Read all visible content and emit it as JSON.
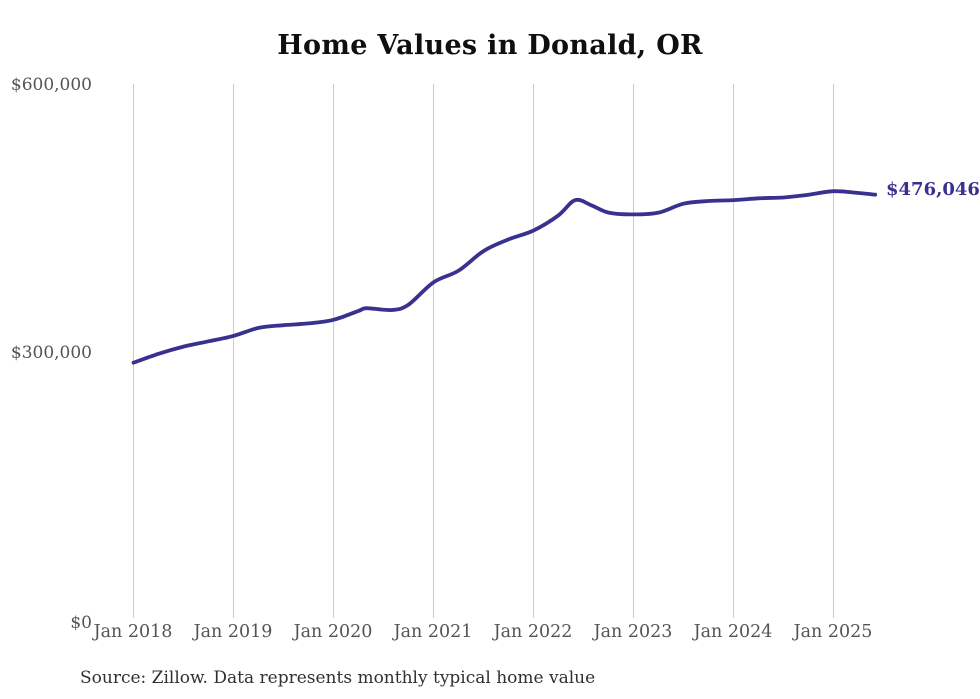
{
  "title": "Home Values in Donald, OR",
  "source_note": "Source: Zillow. Data represents monthly typical home value",
  "colors": {
    "background": "#ffffff",
    "line": "#39318f",
    "grid": "#cccccc",
    "axis_text": "#545454",
    "title_text": "#0f0f0f",
    "source_text": "#303030",
    "end_label_text": "#39318f"
  },
  "chart_data": {
    "type": "line",
    "title": "Home Values in Donald, OR",
    "series_name": "Monthly typical home value",
    "x": [
      "2018-01",
      "2018-04",
      "2018-07",
      "2018-10",
      "2019-01",
      "2019-04",
      "2019-07",
      "2019-10",
      "2020-01",
      "2020-04",
      "2020-05",
      "2020-08",
      "2020-10",
      "2021-01",
      "2021-04",
      "2021-07",
      "2021-10",
      "2022-01",
      "2022-04",
      "2022-06",
      "2022-08",
      "2022-10",
      "2023-01",
      "2023-04",
      "2023-07",
      "2023-10",
      "2024-01",
      "2024-04",
      "2024-07",
      "2024-10",
      "2025-01",
      "2025-04",
      "2025-06"
    ],
    "values": [
      288000,
      298000,
      306000,
      312000,
      318000,
      327000,
      330000,
      332000,
      336000,
      346000,
      349000,
      347000,
      353000,
      378000,
      391000,
      413000,
      426000,
      436000,
      453000,
      470000,
      464000,
      456000,
      454000,
      456000,
      466000,
      469000,
      470000,
      472000,
      473000,
      476000,
      480000,
      478000,
      476046
    ],
    "x_tick_labels": [
      "Jan 2018",
      "Jan 2019",
      "Jan 2020",
      "Jan 2021",
      "Jan 2022",
      "Jan 2023",
      "Jan 2024",
      "Jan 2025"
    ],
    "y_tick_labels": [
      "$0",
      "$300,000",
      "$600,000"
    ],
    "ylim": [
      0,
      600000
    ],
    "xlabel": "",
    "ylabel": "",
    "grid": "vertical-only",
    "legend": "none",
    "line_color": "#39318f",
    "final_value": 476046,
    "final_value_label": "$476,046"
  }
}
